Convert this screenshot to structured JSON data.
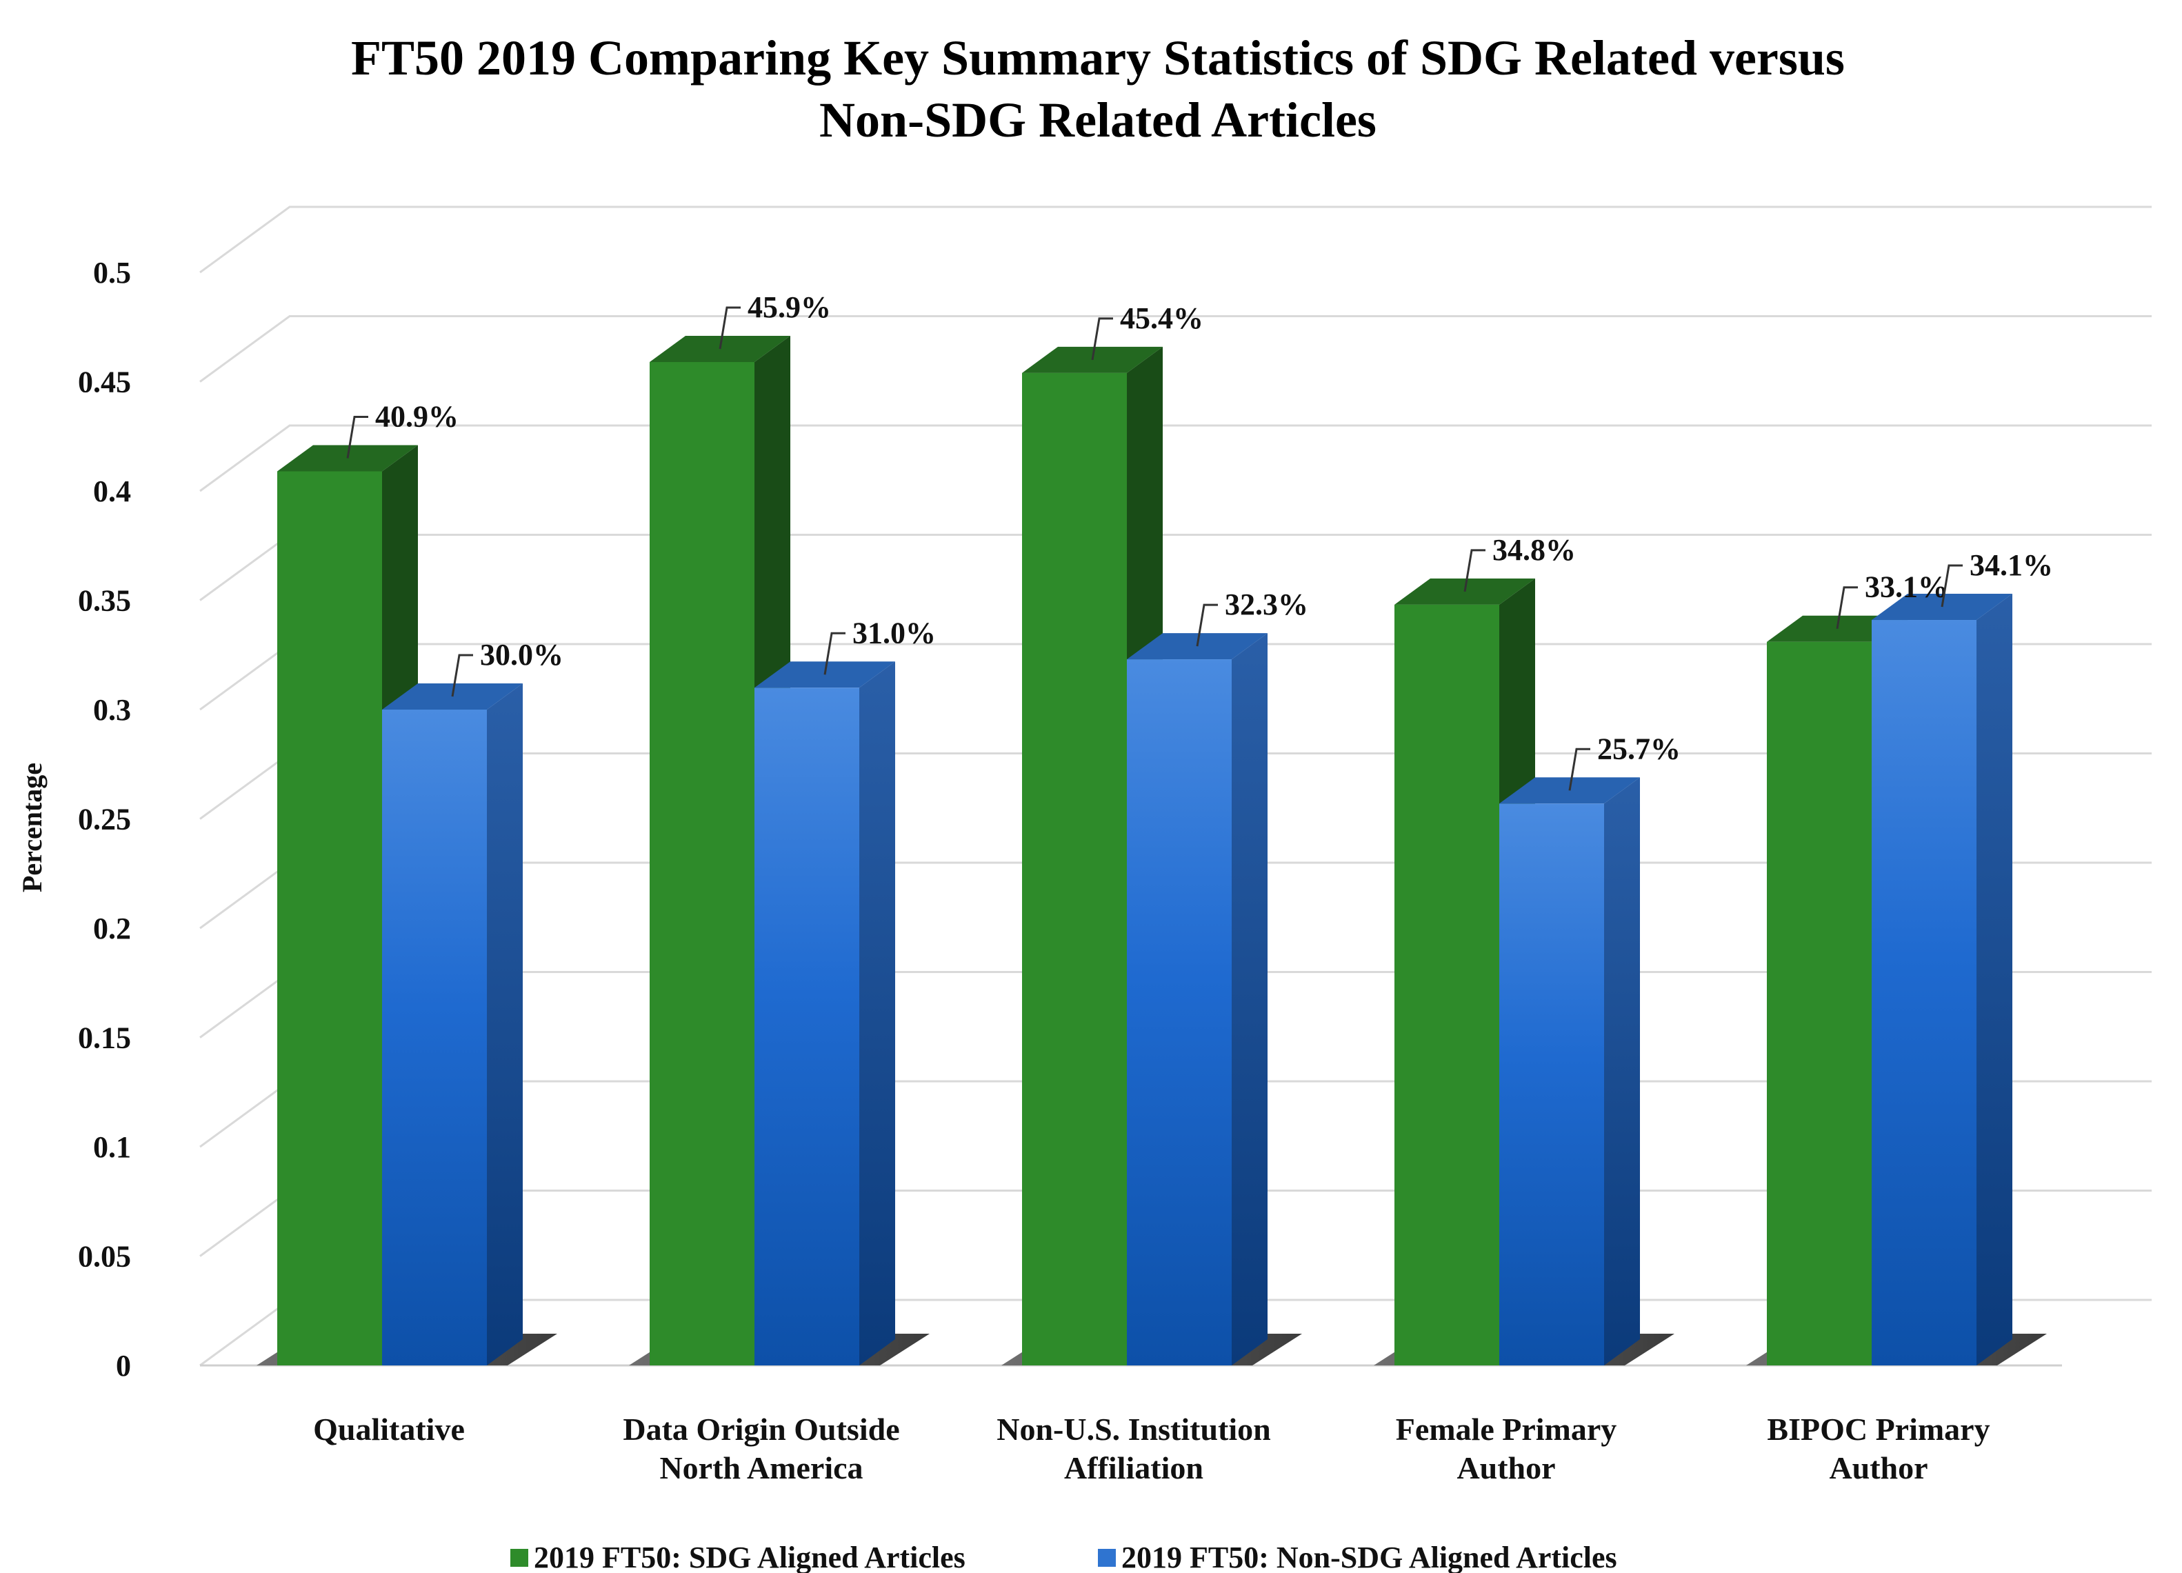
{
  "chart_data": {
    "type": "bar",
    "title": "FT50 2019 Comparing Key Summary Statistics of SDG Related versus Non-SDG Related Articles",
    "title_lines": [
      "FT50 2019 Comparing Key Summary Statistics of SDG Related versus",
      "Non-SDG Related Articles"
    ],
    "ylabel": "Percentage",
    "xlabel": "",
    "ylim": [
      0,
      0.5
    ],
    "yticks": [
      "0",
      "0.05",
      "0.1",
      "0.15",
      "0.2",
      "0.25",
      "0.3",
      "0.35",
      "0.4",
      "0.45",
      "0.5"
    ],
    "categories": [
      "Qualitative",
      "Data Origin Outside North America",
      "Non-U.S. Institution Affiliation",
      "Female Primary Author",
      "BIPOC Primary Author"
    ],
    "category_lines": [
      [
        "Qualitative"
      ],
      [
        "Data Origin Outside",
        "North America"
      ],
      [
        "Non-U.S. Institution",
        "Affiliation"
      ],
      [
        "Female Primary",
        "Author"
      ],
      [
        "BIPOC Primary",
        "Author"
      ]
    ],
    "series": [
      {
        "name": "2019 FT50: SDG Aligned Articles",
        "color": "#2e8b2a",
        "values": [
          0.409,
          0.459,
          0.454,
          0.348,
          0.331
        ],
        "labels": [
          "40.9%",
          "45.9%",
          "45.4%",
          "34.8%",
          "33.1%"
        ]
      },
      {
        "name": "2019 FT50: Non-SDG Aligned Articles",
        "color": "#2f74d0",
        "values": [
          0.3,
          0.31,
          0.323,
          0.257,
          0.341
        ],
        "labels": [
          "30.0%",
          "31.0%",
          "32.3%",
          "25.7%",
          "34.1%"
        ]
      }
    ],
    "legend_position": "bottom",
    "grid": true,
    "style": "3d-clustered-column"
  }
}
